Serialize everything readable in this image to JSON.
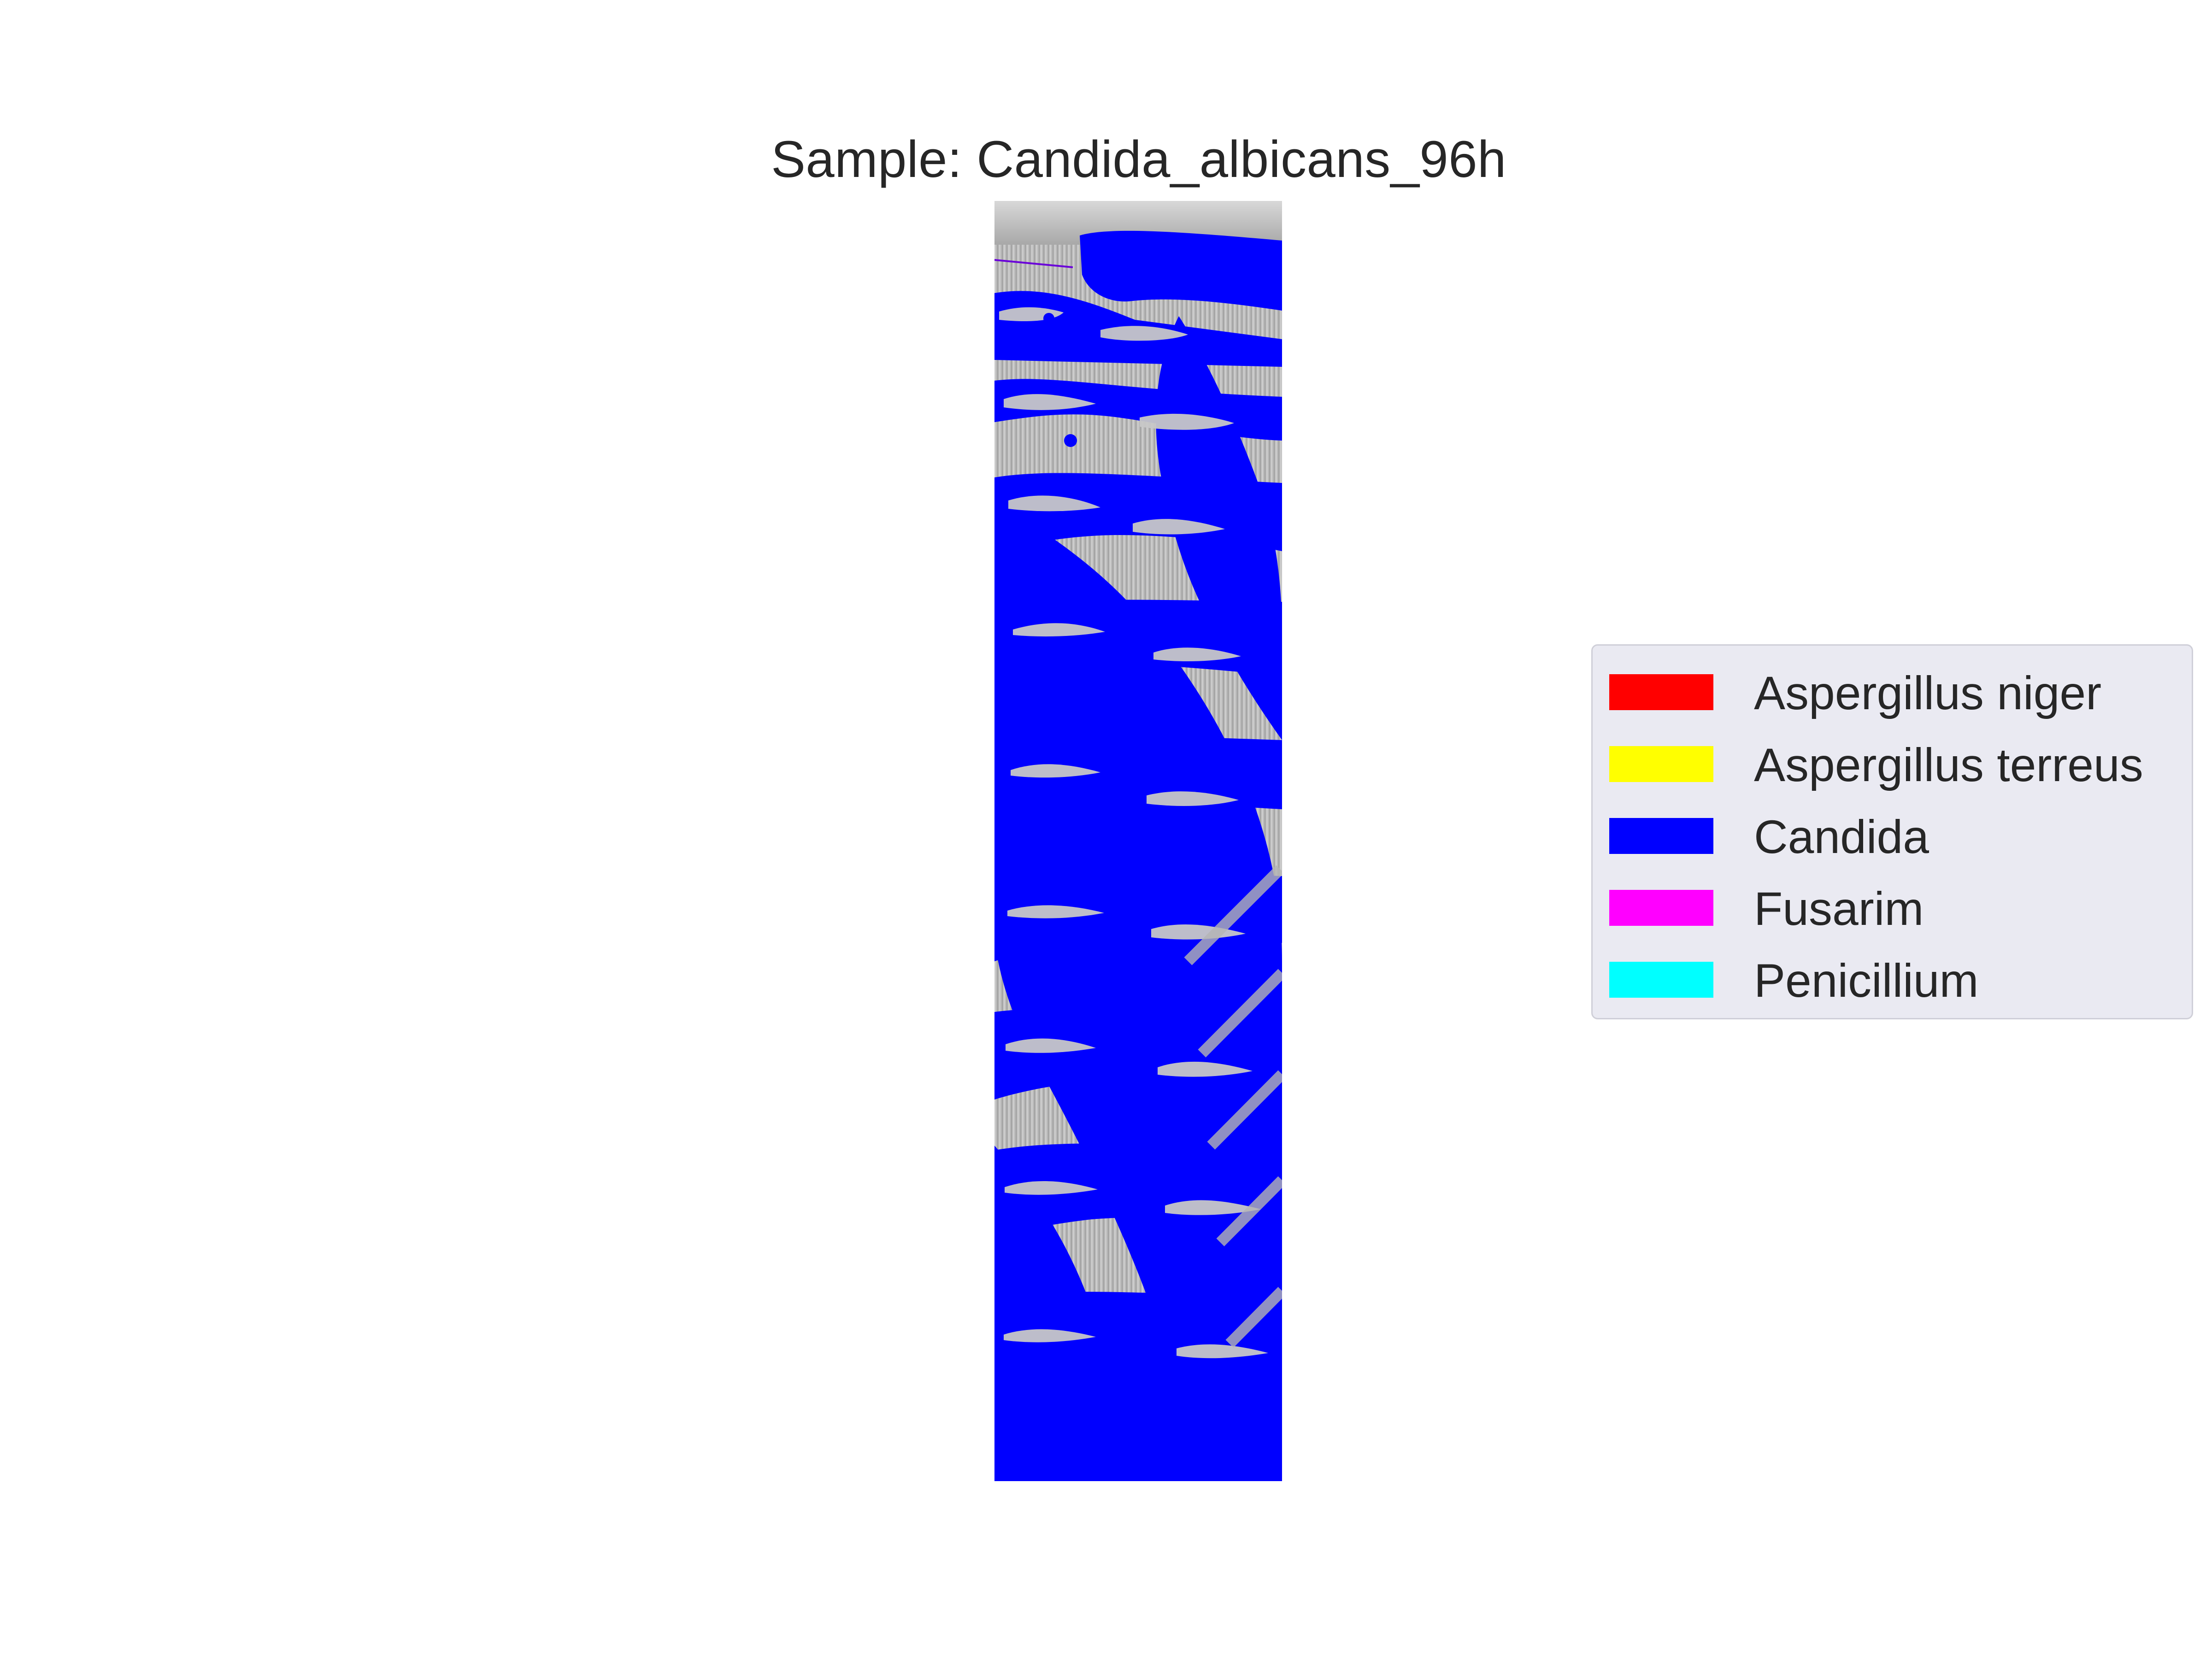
{
  "figure": {
    "title": "Sample: Candida_albicans_96h"
  },
  "legend": {
    "items": [
      {
        "label": "Aspergillus niger",
        "color": "#ff0000"
      },
      {
        "label": "Aspergillus terreus",
        "color": "#ffff00"
      },
      {
        "label": "Candida",
        "color": "#0000ff"
      },
      {
        "label": "Fusarim",
        "color": "#ff00ff"
      },
      {
        "label": "Penicillium",
        "color": "#00ffff"
      }
    ]
  },
  "image": {
    "description_colors": {
      "overlay": "#0000ff",
      "background_gray": "#bdbdbd"
    }
  }
}
